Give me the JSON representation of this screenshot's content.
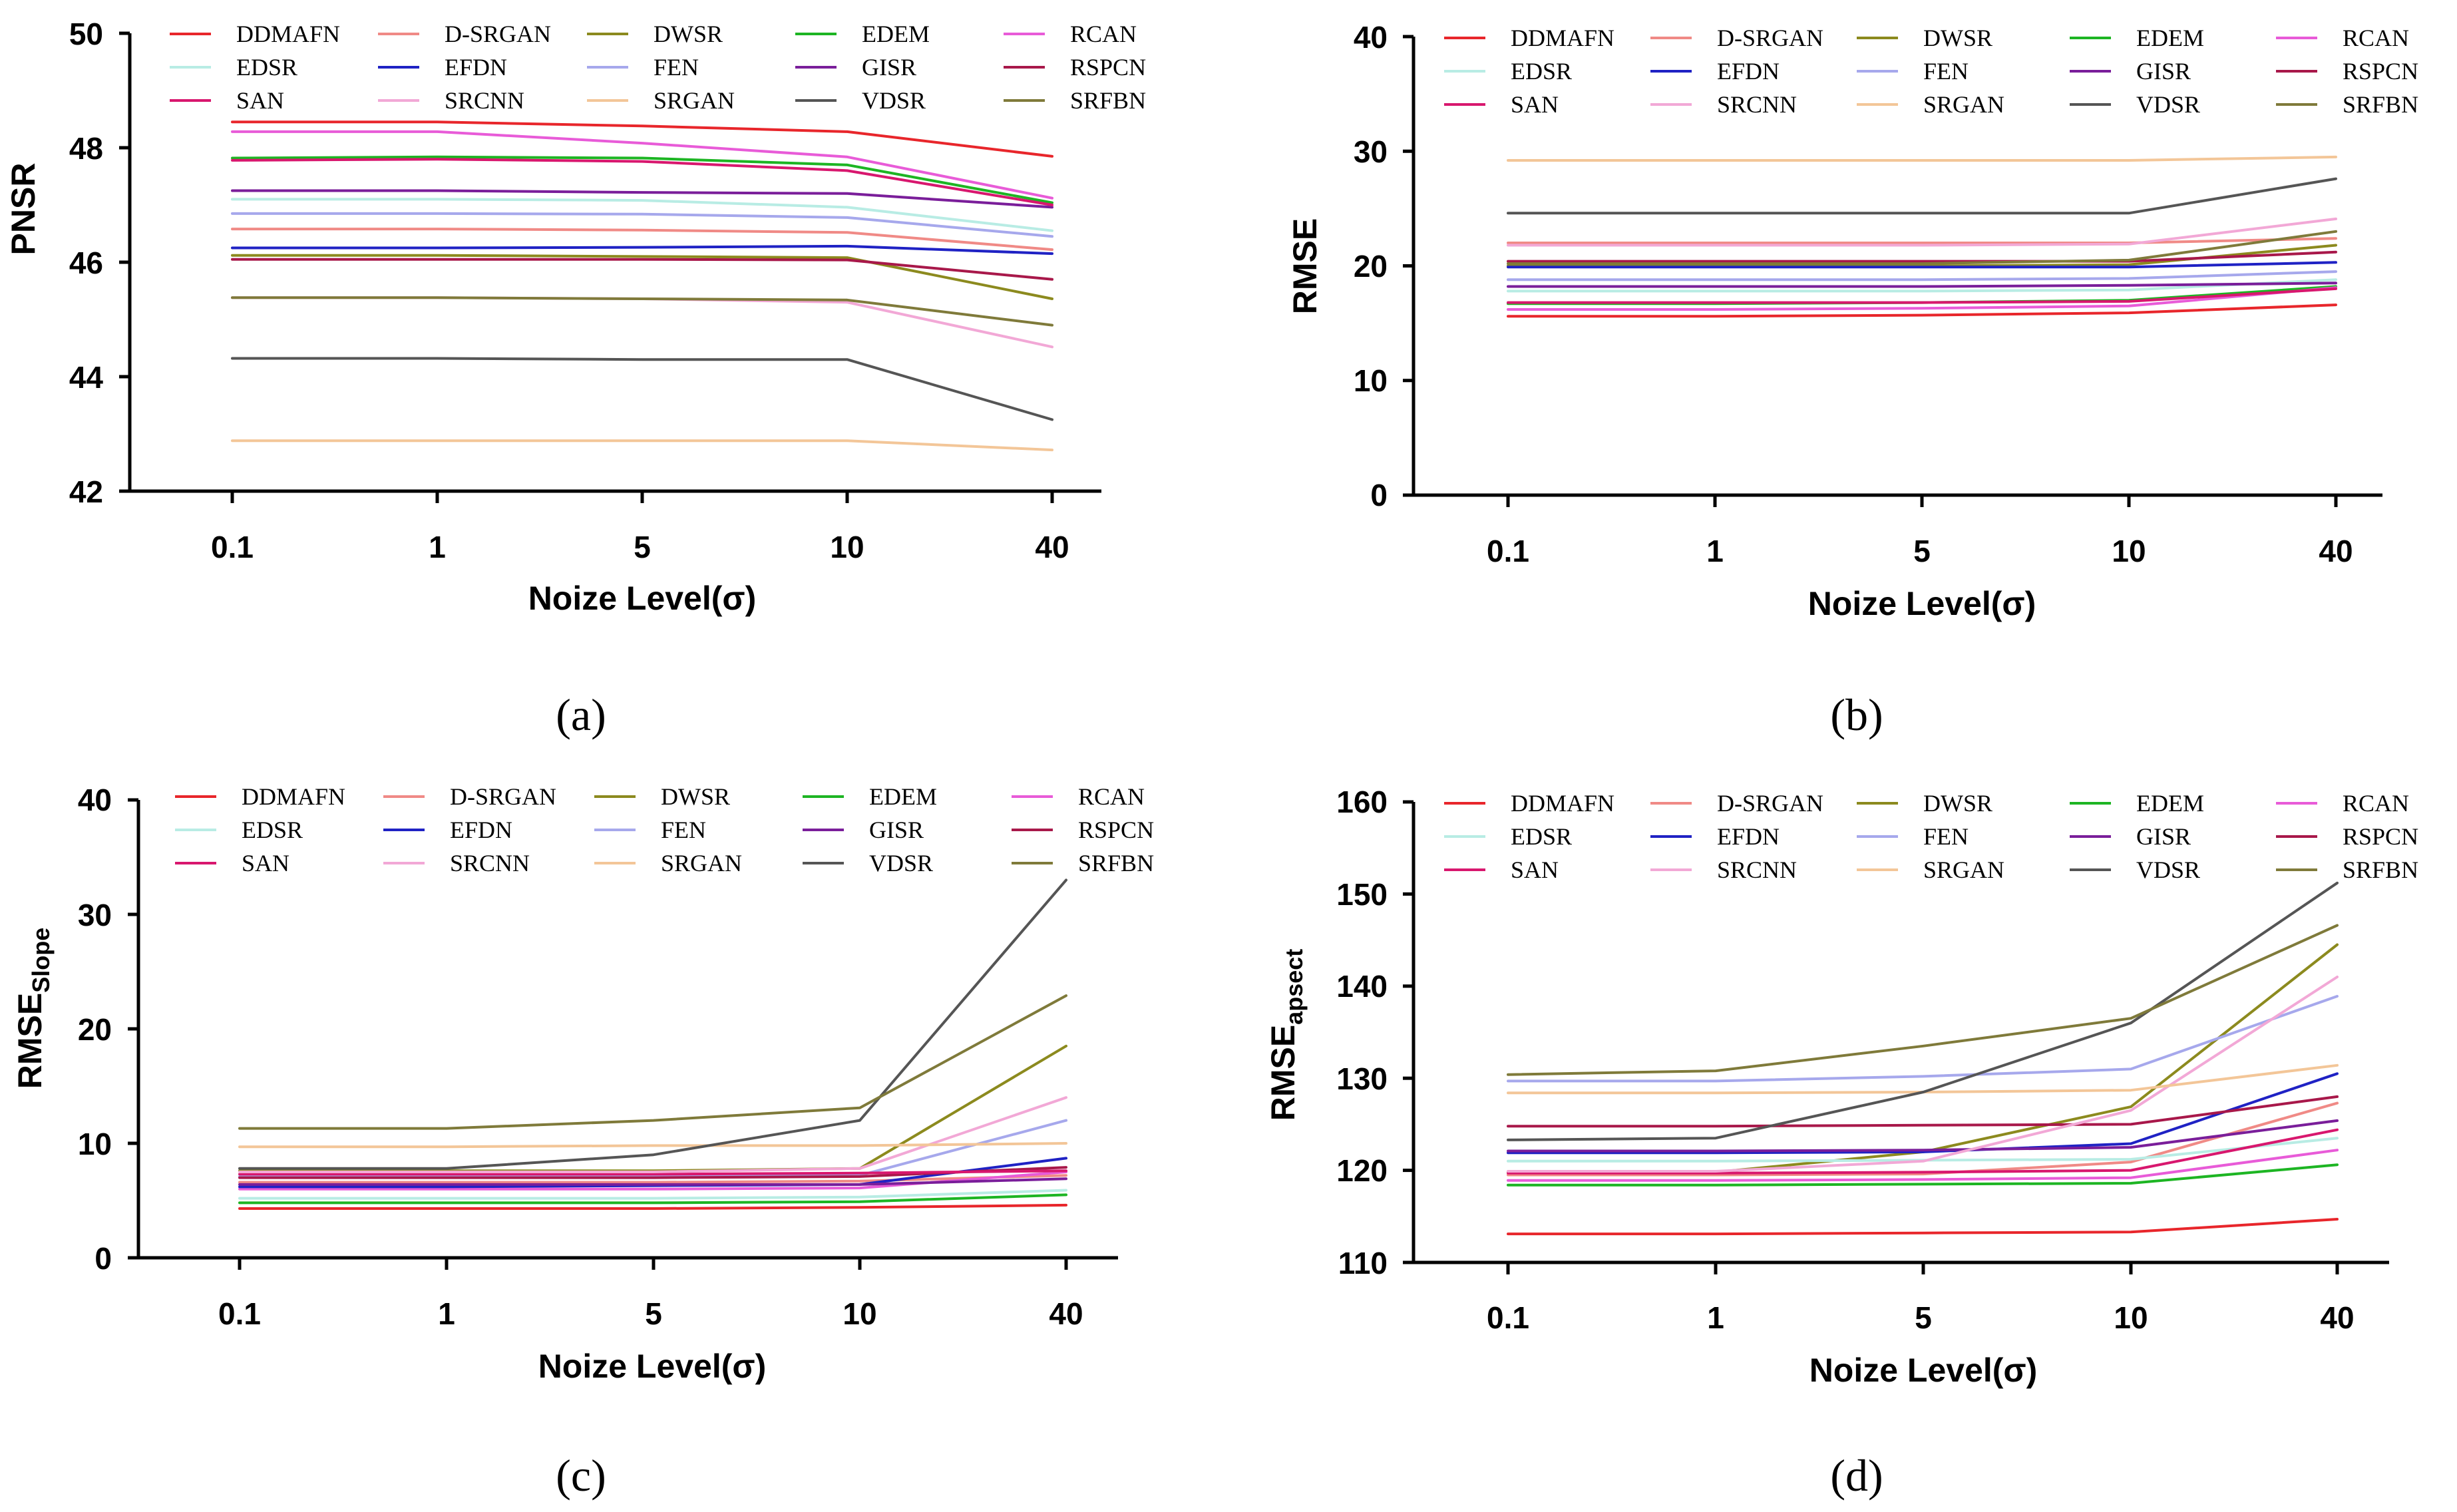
{
  "legend_names": [
    "DDMAFN",
    "D-SRGAN",
    "DWSR",
    "EDEM",
    "RCAN",
    "EDSR",
    "EFDN",
    "FEN",
    "GISR",
    "RSPCN",
    "SAN",
    "SRCNN",
    "SRGAN",
    "VDSR",
    "SRFBN"
  ],
  "colors": {
    "DDMAFN": "#e8262b",
    "D-SRGAN": "#f08a86",
    "DWSR": "#8c8a1e",
    "EDEM": "#1db523",
    "RCAN": "#e85bd8",
    "EDSR": "#b8ece4",
    "EFDN": "#1f22c4",
    "FEN": "#a6a8ec",
    "GISR": "#7a1e9a",
    "RSPCN": "#a8184a",
    "SAN": "#d8176e",
    "SRCNN": "#f2a8d6",
    "SRGAN": "#f3c698",
    "VDSR": "#555555",
    "SRFBN": "#7f7a3a"
  },
  "chart_data": [
    {
      "type": "line",
      "id": "a",
      "caption": "(a)",
      "xlabel": "Noize Level(σ)",
      "ylabel": "PNSR",
      "categories": [
        "0.1",
        "1",
        "5",
        "10",
        "40"
      ],
      "ylim": [
        42,
        50
      ],
      "yticks": [
        "42",
        "44",
        "46",
        "48",
        "50"
      ],
      "series": [
        {
          "name": "DDMAFN",
          "values": [
            48.45,
            48.45,
            48.38,
            48.28,
            47.85
          ]
        },
        {
          "name": "D-SRGAN",
          "values": [
            46.58,
            46.58,
            46.56,
            46.52,
            46.22
          ]
        },
        {
          "name": "DWSR",
          "values": [
            46.12,
            46.12,
            46.1,
            46.08,
            45.36
          ]
        },
        {
          "name": "EDEM",
          "values": [
            47.82,
            47.84,
            47.82,
            47.7,
            47.04
          ]
        },
        {
          "name": "RCAN",
          "values": [
            48.28,
            48.28,
            48.08,
            47.84,
            47.12
          ]
        },
        {
          "name": "EDSR",
          "values": [
            47.1,
            47.1,
            47.08,
            46.96,
            46.55
          ]
        },
        {
          "name": "EFDN",
          "values": [
            46.25,
            46.25,
            46.26,
            46.28,
            46.15
          ]
        },
        {
          "name": "FEN",
          "values": [
            46.85,
            46.85,
            46.84,
            46.78,
            46.45
          ]
        },
        {
          "name": "GISR",
          "values": [
            47.25,
            47.25,
            47.22,
            47.2,
            46.96
          ]
        },
        {
          "name": "RSPCN",
          "values": [
            46.05,
            46.05,
            46.05,
            46.04,
            45.7
          ]
        },
        {
          "name": "SAN",
          "values": [
            47.78,
            47.8,
            47.76,
            47.6,
            47.0
          ]
        },
        {
          "name": "SRCNN",
          "values": [
            45.38,
            45.38,
            45.36,
            45.3,
            44.52
          ]
        },
        {
          "name": "SRGAN",
          "values": [
            42.88,
            42.88,
            42.88,
            42.88,
            42.72
          ]
        },
        {
          "name": "VDSR",
          "values": [
            44.32,
            44.32,
            44.3,
            44.3,
            43.25
          ]
        },
        {
          "name": "SRFBN",
          "values": [
            45.38,
            45.38,
            45.36,
            45.34,
            44.9
          ]
        }
      ]
    },
    {
      "type": "line",
      "id": "b",
      "caption": "(b)",
      "xlabel": "Noize Level(σ)",
      "ylabel": "RMSE",
      "categories": [
        "0.1",
        "1",
        "5",
        "10",
        "40"
      ],
      "ylim": [
        0,
        40
      ],
      "yticks": [
        "0",
        "10",
        "20",
        "30",
        "40"
      ],
      "series": [
        {
          "name": "DDMAFN",
          "values": [
            15.6,
            15.6,
            15.7,
            15.9,
            16.6
          ]
        },
        {
          "name": "D-SRGAN",
          "values": [
            22.0,
            22.0,
            22.0,
            22.0,
            22.4
          ]
        },
        {
          "name": "DWSR",
          "values": [
            20.0,
            20.0,
            20.0,
            20.1,
            21.8
          ]
        },
        {
          "name": "EDEM",
          "values": [
            16.7,
            16.7,
            16.8,
            17.0,
            18.2
          ]
        },
        {
          "name": "RCAN",
          "values": [
            16.2,
            16.2,
            16.3,
            16.5,
            18.1
          ]
        },
        {
          "name": "EDSR",
          "values": [
            17.8,
            17.8,
            17.8,
            17.9,
            18.8
          ]
        },
        {
          "name": "EFDN",
          "values": [
            19.9,
            19.9,
            19.9,
            19.9,
            20.3
          ]
        },
        {
          "name": "FEN",
          "values": [
            18.8,
            18.8,
            18.8,
            18.9,
            19.5
          ]
        },
        {
          "name": "GISR",
          "values": [
            18.2,
            18.2,
            18.2,
            18.3,
            18.5
          ]
        },
        {
          "name": "RSPCN",
          "values": [
            20.4,
            20.4,
            20.4,
            20.4,
            21.2
          ]
        },
        {
          "name": "SAN",
          "values": [
            16.8,
            16.8,
            16.8,
            16.9,
            18.0
          ]
        },
        {
          "name": "SRCNN",
          "values": [
            21.8,
            21.8,
            21.8,
            21.9,
            24.1
          ]
        },
        {
          "name": "SRGAN",
          "values": [
            29.2,
            29.2,
            29.2,
            29.2,
            29.5
          ]
        },
        {
          "name": "VDSR",
          "values": [
            24.6,
            24.6,
            24.6,
            24.6,
            27.6
          ]
        },
        {
          "name": "SRFBN",
          "values": [
            20.2,
            20.2,
            20.2,
            20.5,
            23.0
          ]
        }
      ]
    },
    {
      "type": "line",
      "id": "c",
      "caption": "(c)",
      "xlabel": "Noize Level(σ)",
      "ylabel_main": "RMSE",
      "ylabel_sub": "Slope",
      "categories": [
        "0.1",
        "1",
        "5",
        "10",
        "40"
      ],
      "ylim": [
        0,
        40
      ],
      "yticks": [
        "0",
        "10",
        "20",
        "30",
        "40"
      ],
      "series": [
        {
          "name": "DDMAFN",
          "values": [
            4.3,
            4.3,
            4.3,
            4.4,
            4.6
          ]
        },
        {
          "name": "D-SRGAN",
          "values": [
            6.6,
            6.6,
            6.6,
            6.7,
            7.2
          ]
        },
        {
          "name": "DWSR",
          "values": [
            7.6,
            7.6,
            7.6,
            7.8,
            18.5
          ]
        },
        {
          "name": "EDEM",
          "values": [
            4.8,
            4.8,
            4.8,
            4.9,
            5.5
          ]
        },
        {
          "name": "RCAN",
          "values": [
            6.0,
            6.0,
            6.0,
            6.1,
            7.5
          ]
        },
        {
          "name": "EDSR",
          "values": [
            5.2,
            5.2,
            5.2,
            5.3,
            5.9
          ]
        },
        {
          "name": "EFDN",
          "values": [
            6.2,
            6.2,
            6.3,
            6.4,
            8.7
          ]
        },
        {
          "name": "FEN",
          "values": [
            7.1,
            7.1,
            7.1,
            7.2,
            12.0
          ]
        },
        {
          "name": "GISR",
          "values": [
            6.4,
            6.4,
            6.4,
            6.4,
            6.9
          ]
        },
        {
          "name": "RSPCN",
          "values": [
            7.0,
            7.0,
            7.0,
            7.1,
            7.9
          ]
        },
        {
          "name": "SAN",
          "values": [
            7.3,
            7.3,
            7.3,
            7.4,
            7.6
          ]
        },
        {
          "name": "SRCNN",
          "values": [
            7.5,
            7.5,
            7.5,
            7.8,
            14.0
          ]
        },
        {
          "name": "SRGAN",
          "values": [
            9.7,
            9.7,
            9.8,
            9.8,
            10.0
          ]
        },
        {
          "name": "VDSR",
          "values": [
            7.8,
            7.8,
            9.0,
            12.0,
            33.0
          ]
        },
        {
          "name": "SRFBN",
          "values": [
            11.3,
            11.3,
            12.0,
            13.1,
            22.9
          ]
        }
      ]
    },
    {
      "type": "line",
      "id": "d",
      "caption": "(d)",
      "xlabel": "Noize Level(σ)",
      "ylabel_main": "RMSE",
      "ylabel_sub": "apsect",
      "categories": [
        "0.1",
        "1",
        "5",
        "10",
        "40"
      ],
      "ylim": [
        110,
        160
      ],
      "yticks": [
        "110",
        "120",
        "130",
        "140",
        "150",
        "160"
      ],
      "series": [
        {
          "name": "DDMAFN",
          "values": [
            113.1,
            113.1,
            113.2,
            113.3,
            114.7
          ]
        },
        {
          "name": "D-SRGAN",
          "values": [
            119.5,
            119.5,
            119.6,
            120.9,
            127.3
          ]
        },
        {
          "name": "DWSR",
          "values": [
            119.8,
            119.8,
            122.0,
            126.9,
            144.5
          ]
        },
        {
          "name": "EDEM",
          "values": [
            118.4,
            118.4,
            118.5,
            118.6,
            120.6
          ]
        },
        {
          "name": "RCAN",
          "values": [
            118.9,
            118.9,
            119.0,
            119.2,
            122.2
          ]
        },
        {
          "name": "EDSR",
          "values": [
            121.0,
            121.0,
            121.1,
            121.2,
            123.5
          ]
        },
        {
          "name": "EFDN",
          "values": [
            121.9,
            121.9,
            122.0,
            122.9,
            130.5
          ]
        },
        {
          "name": "FEN",
          "values": [
            129.7,
            129.7,
            130.2,
            131.0,
            138.9
          ]
        },
        {
          "name": "GISR",
          "values": [
            122.1,
            122.1,
            122.2,
            122.5,
            125.4
          ]
        },
        {
          "name": "RSPCN",
          "values": [
            124.8,
            124.8,
            124.9,
            125.0,
            128.0
          ]
        },
        {
          "name": "SAN",
          "values": [
            119.7,
            119.7,
            119.8,
            120.0,
            124.4
          ]
        },
        {
          "name": "SRCNN",
          "values": [
            119.9,
            119.9,
            121.0,
            126.5,
            141.0
          ]
        },
        {
          "name": "SRGAN",
          "values": [
            128.4,
            128.4,
            128.5,
            128.7,
            131.4
          ]
        },
        {
          "name": "VDSR",
          "values": [
            123.3,
            123.5,
            128.5,
            136.0,
            151.2
          ]
        },
        {
          "name": "SRFBN",
          "values": [
            130.4,
            130.8,
            133.5,
            136.5,
            146.6
          ]
        }
      ]
    }
  ]
}
